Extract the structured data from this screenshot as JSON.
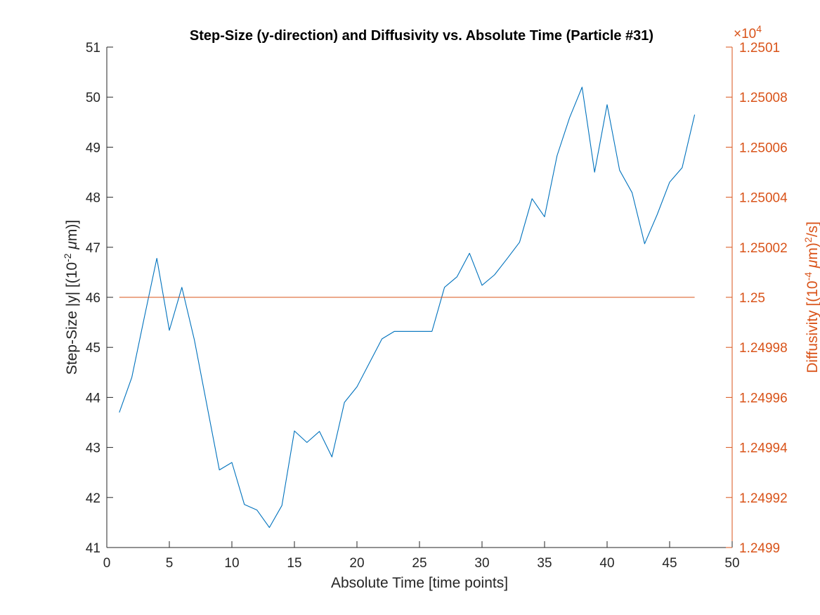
{
  "chart_data": {
    "type": "line",
    "title": "Step-Size (y-direction) and Diffusivity vs. Absolute Time (Particle #31)",
    "xlabel": "Absolute Time [time points]",
    "ylabel_left": "Step-Size |y| [(10^-2 μm)]",
    "ylabel_right": "Diffusivity [(10^-4 μm)^2/s]",
    "right_axis_exponent": "×10^4",
    "xlim": [
      0,
      50
    ],
    "ylim_left": [
      41,
      51
    ],
    "ylim_right": [
      1.2499,
      1.2501
    ],
    "x_ticks": [
      0,
      5,
      10,
      15,
      20,
      25,
      30,
      35,
      40,
      45,
      50
    ],
    "y_ticks_left": [
      41,
      42,
      43,
      44,
      45,
      46,
      47,
      48,
      49,
      50,
      51
    ],
    "y_ticks_right": [
      "1.2499",
      "1.24992",
      "1.24994",
      "1.24996",
      "1.24998",
      "1.25",
      "1.25002",
      "1.25004",
      "1.25006",
      "1.25008",
      "1.2501"
    ],
    "grid": false,
    "colors": {
      "left": "#0072BD",
      "right": "#D95319",
      "axis": "#262626"
    },
    "series": [
      {
        "axis": "left",
        "x": [
          1,
          2,
          3,
          4,
          5,
          6,
          7,
          8,
          9,
          10,
          11,
          12,
          13,
          14,
          15,
          16,
          17,
          18,
          19,
          20,
          21,
          22,
          23,
          24,
          25,
          26,
          27,
          28,
          29,
          30,
          31,
          32,
          33,
          34,
          35,
          36,
          37,
          38,
          39,
          40,
          41,
          42,
          43,
          44,
          45,
          46,
          47
        ],
        "values": [
          43.7,
          44.4,
          45.6,
          46.78,
          45.34,
          46.2,
          45.15,
          43.85,
          42.55,
          42.7,
          41.86,
          41.75,
          41.4,
          41.84,
          43.33,
          43.1,
          43.32,
          42.81,
          43.9,
          44.21,
          44.69,
          45.17,
          45.32,
          45.32,
          45.32,
          45.32,
          46.2,
          46.41,
          46.88,
          46.24,
          46.45,
          46.77,
          47.1,
          47.97,
          47.61,
          48.83,
          49.59,
          50.2,
          48.5,
          49.85,
          48.54,
          48.09,
          47.07,
          47.65,
          48.3,
          48.59,
          49.65
        ]
      },
      {
        "axis": "right",
        "x": [
          1,
          47
        ],
        "values": [
          1.25,
          1.25
        ]
      }
    ]
  }
}
